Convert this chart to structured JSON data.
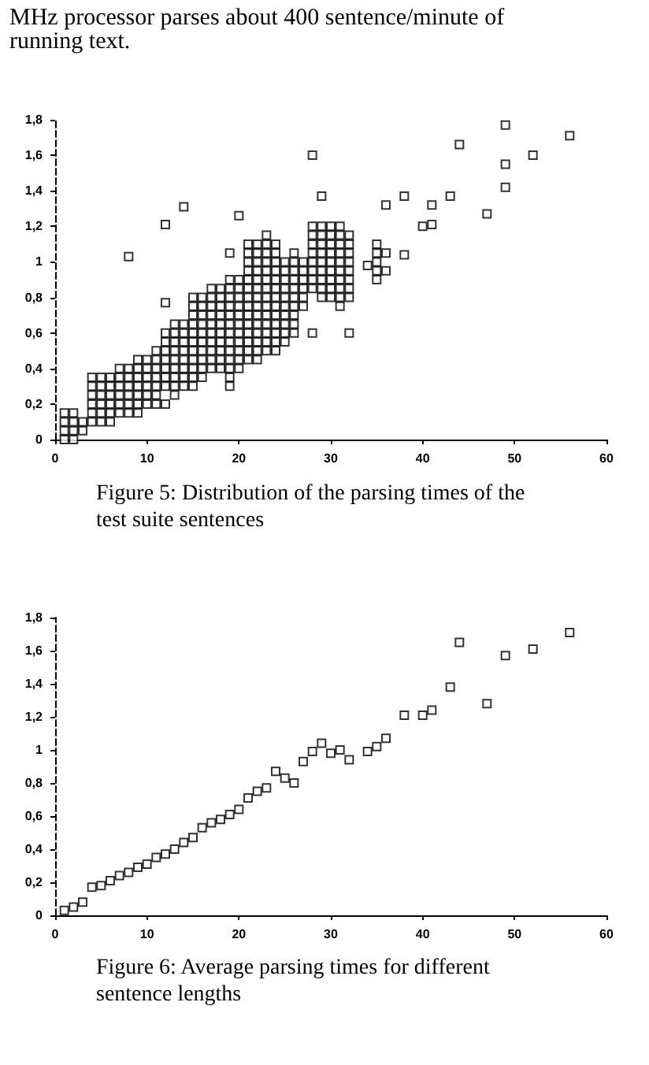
{
  "chart_data": [
    {
      "type": "scatter",
      "title": "Figure 5: Distribution of the parsing times of the test suite sentences",
      "annotations": [
        "MHz processor parses about 400 sentence/minute of running text."
      ],
      "color": "#000000",
      "marker": "square",
      "x": [
        1,
        1,
        1,
        1,
        2,
        2,
        2,
        2,
        3,
        3,
        4,
        4,
        4,
        4,
        4,
        4,
        5,
        5,
        5,
        5,
        5,
        5,
        6,
        6,
        6,
        6,
        6,
        6,
        7,
        7,
        7,
        7,
        7,
        7,
        8,
        8,
        8,
        8,
        8,
        8,
        8,
        9,
        9,
        9,
        9,
        9,
        9,
        9,
        10,
        10,
        10,
        10,
        10,
        10,
        11,
        11,
        11,
        11,
        11,
        11,
        11,
        12,
        12,
        12,
        12,
        12,
        12,
        12,
        12,
        12,
        12,
        13,
        13,
        13,
        13,
        13,
        13,
        13,
        13,
        13,
        14,
        14,
        14,
        14,
        14,
        14,
        14,
        14,
        14,
        15,
        15,
        15,
        15,
        15,
        15,
        15,
        15,
        15,
        15,
        15,
        16,
        16,
        16,
        16,
        16,
        16,
        16,
        16,
        16,
        16,
        17,
        17,
        17,
        17,
        17,
        17,
        17,
        17,
        17,
        17,
        18,
        18,
        18,
        18,
        18,
        18,
        18,
        18,
        18,
        18,
        19,
        19,
        19,
        19,
        19,
        19,
        19,
        19,
        19,
        19,
        19,
        19,
        19,
        19,
        20,
        20,
        20,
        20,
        20,
        20,
        20,
        20,
        20,
        20,
        20,
        20,
        21,
        21,
        21,
        21,
        21,
        21,
        21,
        21,
        21,
        21,
        21,
        21,
        21,
        21,
        22,
        22,
        22,
        22,
        22,
        22,
        22,
        22,
        22,
        22,
        22,
        22,
        22,
        22,
        23,
        23,
        23,
        23,
        23,
        23,
        23,
        23,
        23,
        23,
        23,
        23,
        23,
        23,
        24,
        24,
        24,
        24,
        24,
        24,
        24,
        24,
        24,
        24,
        24,
        24,
        24,
        25,
        25,
        25,
        25,
        25,
        25,
        25,
        25,
        25,
        25,
        26,
        26,
        26,
        26,
        26,
        26,
        26,
        26,
        26,
        26,
        27,
        27,
        27,
        27,
        27,
        27,
        28,
        28,
        28,
        28,
        28,
        28,
        28,
        28,
        28,
        28,
        29,
        29,
        29,
        29,
        29,
        29,
        29,
        29,
        29,
        29,
        30,
        30,
        30,
        30,
        30,
        30,
        30,
        30,
        30,
        31,
        31,
        31,
        31,
        31,
        31,
        31,
        31,
        31,
        31,
        32,
        32,
        32,
        32,
        32,
        32,
        32,
        32,
        32,
        34,
        35,
        35,
        35,
        35,
        35,
        36,
        36,
        36,
        38,
        38,
        40,
        41,
        41,
        43,
        44,
        47,
        49,
        49,
        49,
        52,
        56
      ],
      "values": [
        0,
        0.05,
        0.1,
        0.15,
        0,
        0.05,
        0.1,
        0.15,
        0.05,
        0.1,
        0.1,
        0.15,
        0.2,
        0.25,
        0.3,
        0.35,
        0.1,
        0.15,
        0.2,
        0.25,
        0.3,
        0.35,
        0.1,
        0.15,
        0.2,
        0.25,
        0.3,
        0.35,
        0.15,
        0.2,
        0.25,
        0.3,
        0.35,
        0.4,
        0.15,
        0.2,
        0.25,
        0.3,
        0.35,
        0.4,
        1.03,
        0.15,
        0.2,
        0.25,
        0.3,
        0.35,
        0.4,
        0.45,
        0.2,
        0.25,
        0.3,
        0.35,
        0.4,
        0.45,
        0.2,
        0.25,
        0.3,
        0.35,
        0.4,
        0.45,
        0.5,
        0.2,
        0.3,
        0.35,
        0.4,
        0.45,
        0.5,
        0.55,
        0.6,
        0.77,
        1.21,
        0.25,
        0.3,
        0.35,
        0.4,
        0.45,
        0.5,
        0.55,
        0.6,
        0.65,
        0.3,
        0.35,
        0.4,
        0.45,
        0.5,
        0.55,
        0.6,
        0.65,
        1.31,
        0.3,
        0.35,
        0.4,
        0.45,
        0.5,
        0.55,
        0.6,
        0.65,
        0.7,
        0.75,
        0.8,
        0.35,
        0.4,
        0.45,
        0.5,
        0.55,
        0.6,
        0.65,
        0.7,
        0.75,
        0.8,
        0.4,
        0.45,
        0.5,
        0.55,
        0.6,
        0.65,
        0.7,
        0.75,
        0.8,
        0.85,
        0.4,
        0.45,
        0.5,
        0.55,
        0.6,
        0.65,
        0.7,
        0.75,
        0.8,
        0.85,
        0.3,
        0.35,
        0.4,
        0.45,
        0.5,
        0.55,
        0.6,
        0.65,
        0.7,
        0.75,
        0.8,
        0.85,
        0.9,
        1.05,
        0.4,
        0.45,
        0.5,
        0.55,
        0.6,
        0.65,
        0.7,
        0.75,
        0.8,
        0.85,
        0.9,
        1.26,
        0.45,
        0.5,
        0.55,
        0.6,
        0.65,
        0.7,
        0.75,
        0.8,
        0.85,
        0.9,
        0.95,
        1,
        1.05,
        1.1,
        0.45,
        0.5,
        0.55,
        0.6,
        0.65,
        0.7,
        0.75,
        0.8,
        0.85,
        0.9,
        0.95,
        1,
        1.05,
        1.1,
        0.5,
        0.55,
        0.6,
        0.65,
        0.7,
        0.75,
        0.8,
        0.85,
        0.9,
        0.95,
        1,
        1.05,
        1.1,
        1.15,
        0.5,
        0.55,
        0.6,
        0.65,
        0.7,
        0.75,
        0.8,
        0.85,
        0.9,
        0.95,
        1,
        1.05,
        1.1,
        0.55,
        0.6,
        0.65,
        0.7,
        0.75,
        0.8,
        0.85,
        0.9,
        0.95,
        1,
        0.6,
        0.65,
        0.7,
        0.75,
        0.8,
        0.85,
        0.9,
        0.95,
        1,
        1.05,
        0.75,
        0.8,
        0.85,
        0.9,
        0.95,
        1,
        0.6,
        0.85,
        0.9,
        0.95,
        1,
        1.05,
        1.1,
        1.15,
        1.2,
        1.6,
        0.8,
        0.85,
        0.9,
        0.95,
        1,
        1.05,
        1.1,
        1.15,
        1.2,
        1.37,
        0.8,
        0.85,
        0.9,
        0.95,
        1,
        1.05,
        1.1,
        1.15,
        1.2,
        0.75,
        0.8,
        0.85,
        0.9,
        0.95,
        1,
        1.05,
        1.1,
        1.15,
        1.2,
        0.6,
        0.8,
        0.85,
        0.9,
        0.95,
        1,
        1.05,
        1.1,
        1.15,
        0.98,
        0.9,
        0.95,
        1,
        1.05,
        1.1,
        0.95,
        1.05,
        1.32,
        1.04,
        1.37,
        1.2,
        1.21,
        1.32,
        1.37,
        1.66,
        1.27,
        1.42,
        1.55,
        1.77,
        1.6,
        1.71
      ],
      "xlim": [
        0,
        60
      ],
      "xticks": [
        0,
        10,
        20,
        30,
        40,
        50,
        60
      ],
      "ylim": [
        0,
        1.8
      ],
      "yticks": [
        {
          "value": 0,
          "label": "0"
        },
        {
          "value": 0.2,
          "label": "0,2"
        },
        {
          "value": 0.4,
          "label": "0,4"
        },
        {
          "value": 0.6,
          "label": "0,6"
        },
        {
          "value": 0.8,
          "label": "0,8"
        },
        {
          "value": 1,
          "label": "1"
        },
        {
          "value": 1.2,
          "label": "1,2"
        },
        {
          "value": 1.4,
          "label": "1,4"
        },
        {
          "value": 1.6,
          "label": "1,6"
        },
        {
          "value": 1.8,
          "label": "1,8"
        }
      ]
    },
    {
      "type": "scatter",
      "title": "Figure 6: Average parsing times for different sentence lengths",
      "color": "#000000",
      "marker": "square",
      "x": [
        1,
        2,
        3,
        4,
        5,
        6,
        7,
        8,
        9,
        10,
        11,
        12,
        13,
        14,
        15,
        16,
        17,
        18,
        19,
        20,
        21,
        22,
        23,
        24,
        25,
        26,
        27,
        28,
        29,
        30,
        31,
        32,
        34,
        35,
        36,
        38,
        40,
        41,
        43,
        44,
        47,
        49,
        52,
        56
      ],
      "values": [
        0.03,
        0.05,
        0.08,
        0.17,
        0.18,
        0.21,
        0.24,
        0.26,
        0.29,
        0.31,
        0.35,
        0.37,
        0.4,
        0.44,
        0.47,
        0.53,
        0.56,
        0.58,
        0.61,
        0.64,
        0.71,
        0.75,
        0.77,
        0.87,
        0.83,
        0.8,
        0.93,
        0.99,
        1.04,
        0.98,
        1,
        0.94,
        0.99,
        1.02,
        1.07,
        1.21,
        1.21,
        1.24,
        1.38,
        1.65,
        1.28,
        1.57,
        1.61,
        1.71
      ],
      "xlim": [
        0,
        60
      ],
      "xticks": [
        0,
        10,
        20,
        30,
        40,
        50,
        60
      ],
      "ylim": [
        0,
        1.8
      ],
      "yticks": [
        {
          "value": 0,
          "label": "0"
        },
        {
          "value": 0.2,
          "label": "0,2"
        },
        {
          "value": 0.4,
          "label": "0,4"
        },
        {
          "value": 0.6,
          "label": "0,6"
        },
        {
          "value": 0.8,
          "label": "0,8"
        },
        {
          "value": 1,
          "label": "1"
        },
        {
          "value": 1.2,
          "label": "1,2"
        },
        {
          "value": 1.4,
          "label": "1,4"
        },
        {
          "value": 1.6,
          "label": "1,6"
        },
        {
          "value": 1.8,
          "label": "1,8"
        }
      ]
    }
  ]
}
